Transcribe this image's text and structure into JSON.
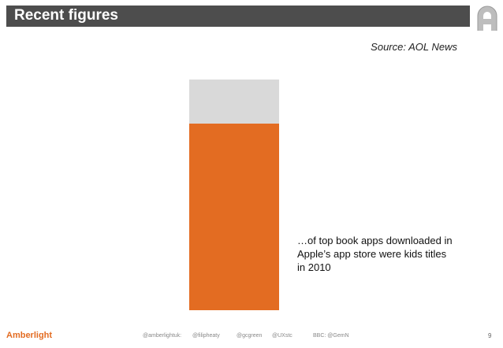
{
  "slide": {
    "title": "Recent figures",
    "source": "Source: AOL News",
    "stat_label": "81%",
    "stat_fraction": 0.81,
    "caption": "…of top book apps downloaded in Apple’s app store were kids titles in 2010"
  },
  "colors": {
    "title_bar": "#4d4d4d",
    "accent": "#e36c22",
    "bar_background": "#d9d9d9"
  },
  "logo": {
    "icon": "amberlight-a-logo-icon"
  },
  "footer": {
    "brand": "Amberlight",
    "links": [
      "@amberlightuk:",
      "@filipheaty",
      "@gcgreen",
      "@UXstc",
      "BBC: @GemN"
    ],
    "page_number": "9"
  }
}
